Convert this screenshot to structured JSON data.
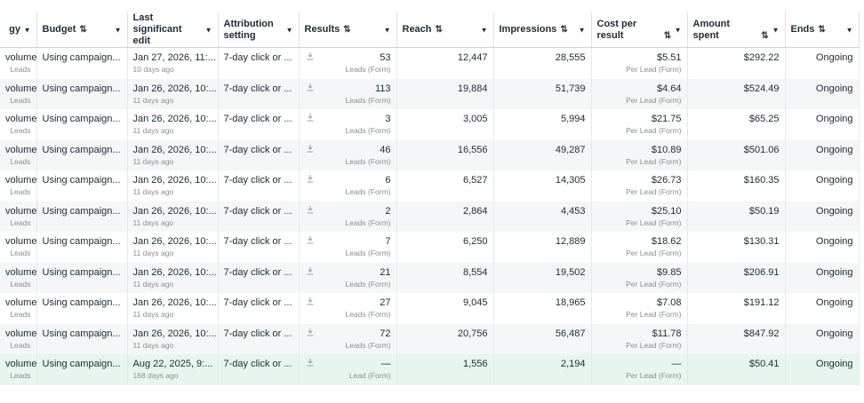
{
  "table": {
    "columns": [
      {
        "label": "gy",
        "align": "right",
        "sort": false
      },
      {
        "label": "Budget",
        "align": "left",
        "sort": true
      },
      {
        "label": "Last significant edit",
        "align": "left",
        "sort": false
      },
      {
        "label": "Attribution setting",
        "align": "left",
        "sort": false
      },
      {
        "label": "Results",
        "align": "right",
        "sort": true
      },
      {
        "label": "Reach",
        "align": "right",
        "sort": true
      },
      {
        "label": "Impressions",
        "align": "right",
        "sort": true
      },
      {
        "label": "Cost per result",
        "align": "right",
        "sort": true
      },
      {
        "label": "Amount spent",
        "align": "right",
        "sort": true
      },
      {
        "label": "Ends",
        "align": "right",
        "sort": true
      }
    ],
    "rows": [
      [
        [
          "volume",
          "Leads"
        ],
        [
          "Using campaign..."
        ],
        [
          "Jan 27, 2026, 11:...",
          "10 days ago"
        ],
        [
          "7-day click or ..."
        ],
        [
          "53",
          "Leads (Form)"
        ],
        [
          "12,447"
        ],
        [
          "28,555"
        ],
        [
          "$5.51",
          "Per Lead (Form)"
        ],
        [
          "$292.22"
        ],
        [
          "Ongoing"
        ]
      ],
      [
        [
          "volume",
          "Leads"
        ],
        [
          "Using campaign..."
        ],
        [
          "Jan 26, 2026, 10:...",
          "11 days ago"
        ],
        [
          "7-day click or ..."
        ],
        [
          "113",
          "Leads (Form)"
        ],
        [
          "19,884"
        ],
        [
          "51,739"
        ],
        [
          "$4.64",
          "Per Lead (Form)"
        ],
        [
          "$524.49"
        ],
        [
          "Ongoing"
        ]
      ],
      [
        [
          "volume",
          "Leads"
        ],
        [
          "Using campaign..."
        ],
        [
          "Jan 26, 2026, 10:...",
          "11 days ago"
        ],
        [
          "7-day click or ..."
        ],
        [
          "3",
          "Leads (Form)"
        ],
        [
          "3,005"
        ],
        [
          "5,994"
        ],
        [
          "$21.75",
          "Per Lead (Form)"
        ],
        [
          "$65.25"
        ],
        [
          "Ongoing"
        ]
      ],
      [
        [
          "volume",
          "Leads"
        ],
        [
          "Using campaign..."
        ],
        [
          "Jan 26, 2026, 10:...",
          "11 days ago"
        ],
        [
          "7-day click or ..."
        ],
        [
          "46",
          "Leads (Form)"
        ],
        [
          "16,556"
        ],
        [
          "49,287"
        ],
        [
          "$10.89",
          "Per Lead (Form)"
        ],
        [
          "$501.06"
        ],
        [
          "Ongoing"
        ]
      ],
      [
        [
          "volume",
          "Leads"
        ],
        [
          "Using campaign..."
        ],
        [
          "Jan 26, 2026, 10:...",
          "11 days ago"
        ],
        [
          "7-day click or ..."
        ],
        [
          "6",
          "Leads (Form)"
        ],
        [
          "6,527"
        ],
        [
          "14,305"
        ],
        [
          "$26.73",
          "Per Lead (Form)"
        ],
        [
          "$160.35"
        ],
        [
          "Ongoing"
        ]
      ],
      [
        [
          "volume",
          "Leads"
        ],
        [
          "Using campaign..."
        ],
        [
          "Jan 26, 2026, 10:...",
          "11 days ago"
        ],
        [
          "7-day click or ..."
        ],
        [
          "2",
          "Leads (Form)"
        ],
        [
          "2,864"
        ],
        [
          "4,453"
        ],
        [
          "$25.10",
          "Per Lead (Form)"
        ],
        [
          "$50.19"
        ],
        [
          "Ongoing"
        ]
      ],
      [
        [
          "volume",
          "Leads"
        ],
        [
          "Using campaign..."
        ],
        [
          "Jan 26, 2026, 10:...",
          "11 days ago"
        ],
        [
          "7-day click or ..."
        ],
        [
          "7",
          "Leads (Form)"
        ],
        [
          "6,250"
        ],
        [
          "12,889"
        ],
        [
          "$18.62",
          "Per Lead (Form)"
        ],
        [
          "$130.31"
        ],
        [
          "Ongoing"
        ]
      ],
      [
        [
          "volume",
          "Leads"
        ],
        [
          "Using campaign..."
        ],
        [
          "Jan 26, 2026, 10:...",
          "11 days ago"
        ],
        [
          "7-day click or ..."
        ],
        [
          "21",
          "Leads (Form)"
        ],
        [
          "8,554"
        ],
        [
          "19,502"
        ],
        [
          "$9.85",
          "Per Lead (Form)"
        ],
        [
          "$206.91"
        ],
        [
          "Ongoing"
        ]
      ],
      [
        [
          "volume",
          "Leads"
        ],
        [
          "Using campaign..."
        ],
        [
          "Jan 26, 2026, 10:...",
          "11 days ago"
        ],
        [
          "7-day click or ..."
        ],
        [
          "27",
          "Leads (Form)"
        ],
        [
          "9,045"
        ],
        [
          "18,965"
        ],
        [
          "$7.08",
          "Per Lead (Form)"
        ],
        [
          "$191.12"
        ],
        [
          "Ongoing"
        ]
      ],
      [
        [
          "volume",
          "Leads"
        ],
        [
          "Using campaign..."
        ],
        [
          "Jan 26, 2026, 10:...",
          "11 days ago"
        ],
        [
          "7-day click or ..."
        ],
        [
          "72",
          "Leads (Form)"
        ],
        [
          "20,756"
        ],
        [
          "56,487"
        ],
        [
          "$11.78",
          "Per Lead (Form)"
        ],
        [
          "$847.92"
        ],
        [
          "Ongoing"
        ]
      ],
      [
        [
          "volume",
          "Leads"
        ],
        [
          "Using campaign..."
        ],
        [
          "Aug 22, 2025, 9:...",
          "168 days ago"
        ],
        [
          "7-day click or ..."
        ],
        [
          "—",
          "Lead (Form)"
        ],
        [
          "1,556"
        ],
        [
          "2,194"
        ],
        [
          "—",
          "Per Lead (Form)"
        ],
        [
          "$50.41"
        ],
        [
          "Ongoing"
        ]
      ]
    ],
    "highlighted_row": 10
  }
}
